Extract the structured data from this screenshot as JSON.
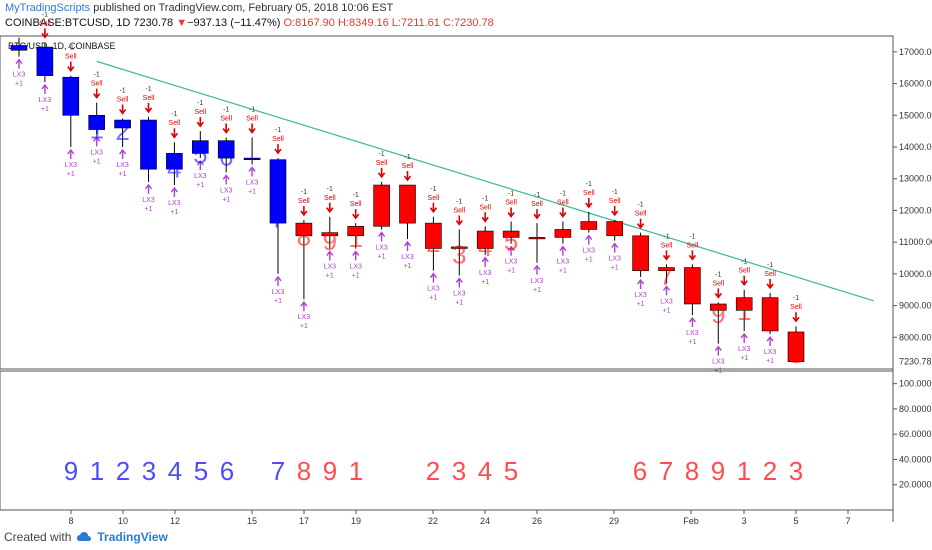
{
  "header": {
    "publisher": "MyTradingScripts",
    "published_text": "published on TradingView.com, February 05, 2018 10:06 EST",
    "symbol": "COINBASE:BTCUSD, 1D",
    "last": "7230.78",
    "change_arrow": "▼",
    "change": "−937.13 (−11.47%)",
    "open": "O:8167.90",
    "high": "H:8349.16",
    "low": "L:7211.61",
    "close": "C:7230.78"
  },
  "footer": {
    "created_with": "Created with",
    "tradingview": "TradingView"
  },
  "chart_data": [
    {
      "type": "candlestick",
      "legend": "BTC/USD, 1D, COINBASE",
      "ylim": [
        7000,
        17500
      ],
      "y_ticks": [
        8000,
        9000,
        10000,
        11000,
        12000,
        13000,
        14000,
        15000,
        16000,
        17000
      ],
      "y_tick_labels": [
        "8000.00",
        "9000.00",
        "10000.00",
        "11000.00",
        "12000.00",
        "13000.00",
        "14000.00",
        "15000.00",
        "16000.00",
        "17000.00"
      ],
      "last_price_label": "7230.78",
      "x_tick_labels": [
        "8",
        "10",
        "12",
        "15",
        "17",
        "19",
        "22",
        "24",
        "26",
        "29",
        "Feb",
        "3",
        "5",
        "7"
      ],
      "colors": {
        "down_setup": "#0000ff",
        "up_setup": "#ff0000",
        "trendline": "#3cb88d",
        "lx3": "#b040d0",
        "sell": "#dd0000"
      },
      "candles": [
        {
          "date": "Jan 06",
          "o": 17200,
          "h": 17450,
          "l": 16850,
          "c": 17050,
          "color": "blue",
          "count": ""
        },
        {
          "date": "Jan 07",
          "o": 17150,
          "h": 17300,
          "l": 16050,
          "c": 16250,
          "color": "blue",
          "count": ""
        },
        {
          "date": "Jan 08",
          "o": 16200,
          "h": 16250,
          "l": 14000,
          "c": 15000,
          "color": "blue",
          "count": "9"
        },
        {
          "date": "Jan 09",
          "o": 15000,
          "h": 15400,
          "l": 14400,
          "c": 14550,
          "color": "blue",
          "count": "1"
        },
        {
          "date": "Jan 10",
          "o": 14600,
          "h": 14900,
          "l": 14000,
          "c": 14850,
          "color": "blue",
          "count": "2"
        },
        {
          "date": "Jan 11",
          "o": 14850,
          "h": 14950,
          "l": 12900,
          "c": 13300,
          "color": "blue",
          "count": "3"
        },
        {
          "date": "Jan 12",
          "o": 13300,
          "h": 14150,
          "l": 12800,
          "c": 13800,
          "color": "blue",
          "count": "4"
        },
        {
          "date": "Jan 13",
          "o": 13800,
          "h": 14500,
          "l": 13650,
          "c": 14200,
          "color": "blue",
          "count": "5"
        },
        {
          "date": "Jan 14",
          "o": 14200,
          "h": 14300,
          "l": 13200,
          "c": 13650,
          "color": "blue",
          "count": "6"
        },
        {
          "date": "Jan 15",
          "o": 13650,
          "h": 14300,
          "l": 13450,
          "c": 13600,
          "color": "blue",
          "count": ""
        },
        {
          "date": "Jan 16",
          "o": 13600,
          "h": 13650,
          "l": 10000,
          "c": 11600,
          "color": "blue",
          "count": "7"
        },
        {
          "date": "Jan 17",
          "o": 11600,
          "h": 11700,
          "l": 9200,
          "c": 11200,
          "color": "red",
          "count": "8"
        },
        {
          "date": "Jan 18",
          "o": 11200,
          "h": 11800,
          "l": 10800,
          "c": 11300,
          "color": "red",
          "count": "9"
        },
        {
          "date": "Jan 19",
          "o": 11200,
          "h": 11600,
          "l": 10800,
          "c": 11500,
          "color": "red",
          "count": "1"
        },
        {
          "date": "Jan 20",
          "o": 11500,
          "h": 12900,
          "l": 11400,
          "c": 12800,
          "color": "red",
          "count": ""
        },
        {
          "date": "Jan 21",
          "o": 12800,
          "h": 12800,
          "l": 11100,
          "c": 11600,
          "color": "red",
          "count": ""
        },
        {
          "date": "Jan 22",
          "o": 11600,
          "h": 11800,
          "l": 10100,
          "c": 10800,
          "color": "red",
          "count": "2"
        },
        {
          "date": "Jan 23",
          "o": 10800,
          "h": 11400,
          "l": 9950,
          "c": 10850,
          "color": "red",
          "count": "3"
        },
        {
          "date": "Jan 24",
          "o": 10800,
          "h": 11500,
          "l": 10600,
          "c": 11350,
          "color": "red",
          "count": "4"
        },
        {
          "date": "Jan 25",
          "o": 11350,
          "h": 11650,
          "l": 10950,
          "c": 11150,
          "color": "red",
          "count": "5"
        },
        {
          "date": "Jan 26",
          "o": 11150,
          "h": 11600,
          "l": 10350,
          "c": 11150,
          "color": "red",
          "count": ""
        },
        {
          "date": "Jan 27",
          "o": 11150,
          "h": 11650,
          "l": 10950,
          "c": 11400,
          "color": "red",
          "count": ""
        },
        {
          "date": "Jan 28",
          "o": 11400,
          "h": 11950,
          "l": 11300,
          "c": 11650,
          "color": "red",
          "count": ""
        },
        {
          "date": "Jan 29",
          "o": 11650,
          "h": 11700,
          "l": 11050,
          "c": 11200,
          "color": "red",
          "count": ""
        },
        {
          "date": "Jan 30",
          "o": 11200,
          "h": 11300,
          "l": 9900,
          "c": 10100,
          "color": "red",
          "count": "6"
        },
        {
          "date": "Jan 31",
          "o": 10100,
          "h": 10300,
          "l": 9700,
          "c": 10200,
          "color": "red",
          "count": "7"
        },
        {
          "date": "Feb 01",
          "o": 10200,
          "h": 10300,
          "l": 8700,
          "c": 9050,
          "color": "red",
          "count": "8"
        },
        {
          "date": "Feb 02",
          "o": 9050,
          "h": 9100,
          "l": 7800,
          "c": 8850,
          "color": "red",
          "count": "9"
        },
        {
          "date": "Feb 03",
          "o": 8850,
          "h": 9500,
          "l": 8200,
          "c": 9250,
          "color": "red",
          "count": "1"
        },
        {
          "date": "Feb 04",
          "o": 9250,
          "h": 9400,
          "l": 8100,
          "c": 8200,
          "color": "red",
          "count": "2"
        },
        {
          "date": "Feb 05",
          "o": 8168,
          "h": 8349,
          "l": 7212,
          "c": 7231,
          "color": "red",
          "count": "3"
        }
      ],
      "sell_label": "Sell",
      "sell_value": "-1",
      "lx3_label": "LX3",
      "lx3_value": "+1",
      "trendline": {
        "start": {
          "date": "Jan 09",
          "price": 16700
        },
        "end": {
          "date": "Feb 08",
          "price": 9150
        }
      }
    },
    {
      "type": "text-series",
      "ylim": [
        0,
        110
      ],
      "y_ticks": [
        20,
        40,
        60,
        80,
        100
      ],
      "y_tick_labels": [
        "20.0000",
        "40.0000",
        "60.0000",
        "80.0000",
        "100.0000"
      ],
      "counts": [
        {
          "label": "9",
          "color": "blue"
        },
        {
          "label": "1",
          "color": "blue"
        },
        {
          "label": "2",
          "color": "blue"
        },
        {
          "label": "3",
          "color": "blue"
        },
        {
          "label": "4",
          "color": "blue"
        },
        {
          "label": "5",
          "color": "blue"
        },
        {
          "label": "6",
          "color": "blue"
        },
        {
          "label": "7",
          "color": "blue"
        },
        {
          "label": "8",
          "color": "red"
        },
        {
          "label": "9",
          "color": "red"
        },
        {
          "label": "1",
          "color": "red"
        },
        {
          "label": "2",
          "color": "red"
        },
        {
          "label": "3",
          "color": "red"
        },
        {
          "label": "4",
          "color": "red"
        },
        {
          "label": "5",
          "color": "red"
        },
        {
          "label": "6",
          "color": "red"
        },
        {
          "label": "7",
          "color": "red"
        },
        {
          "label": "8",
          "color": "red"
        },
        {
          "label": "9",
          "color": "red"
        },
        {
          "label": "1",
          "color": "red"
        },
        {
          "label": "2",
          "color": "red"
        },
        {
          "label": "3",
          "color": "red"
        }
      ]
    }
  ]
}
